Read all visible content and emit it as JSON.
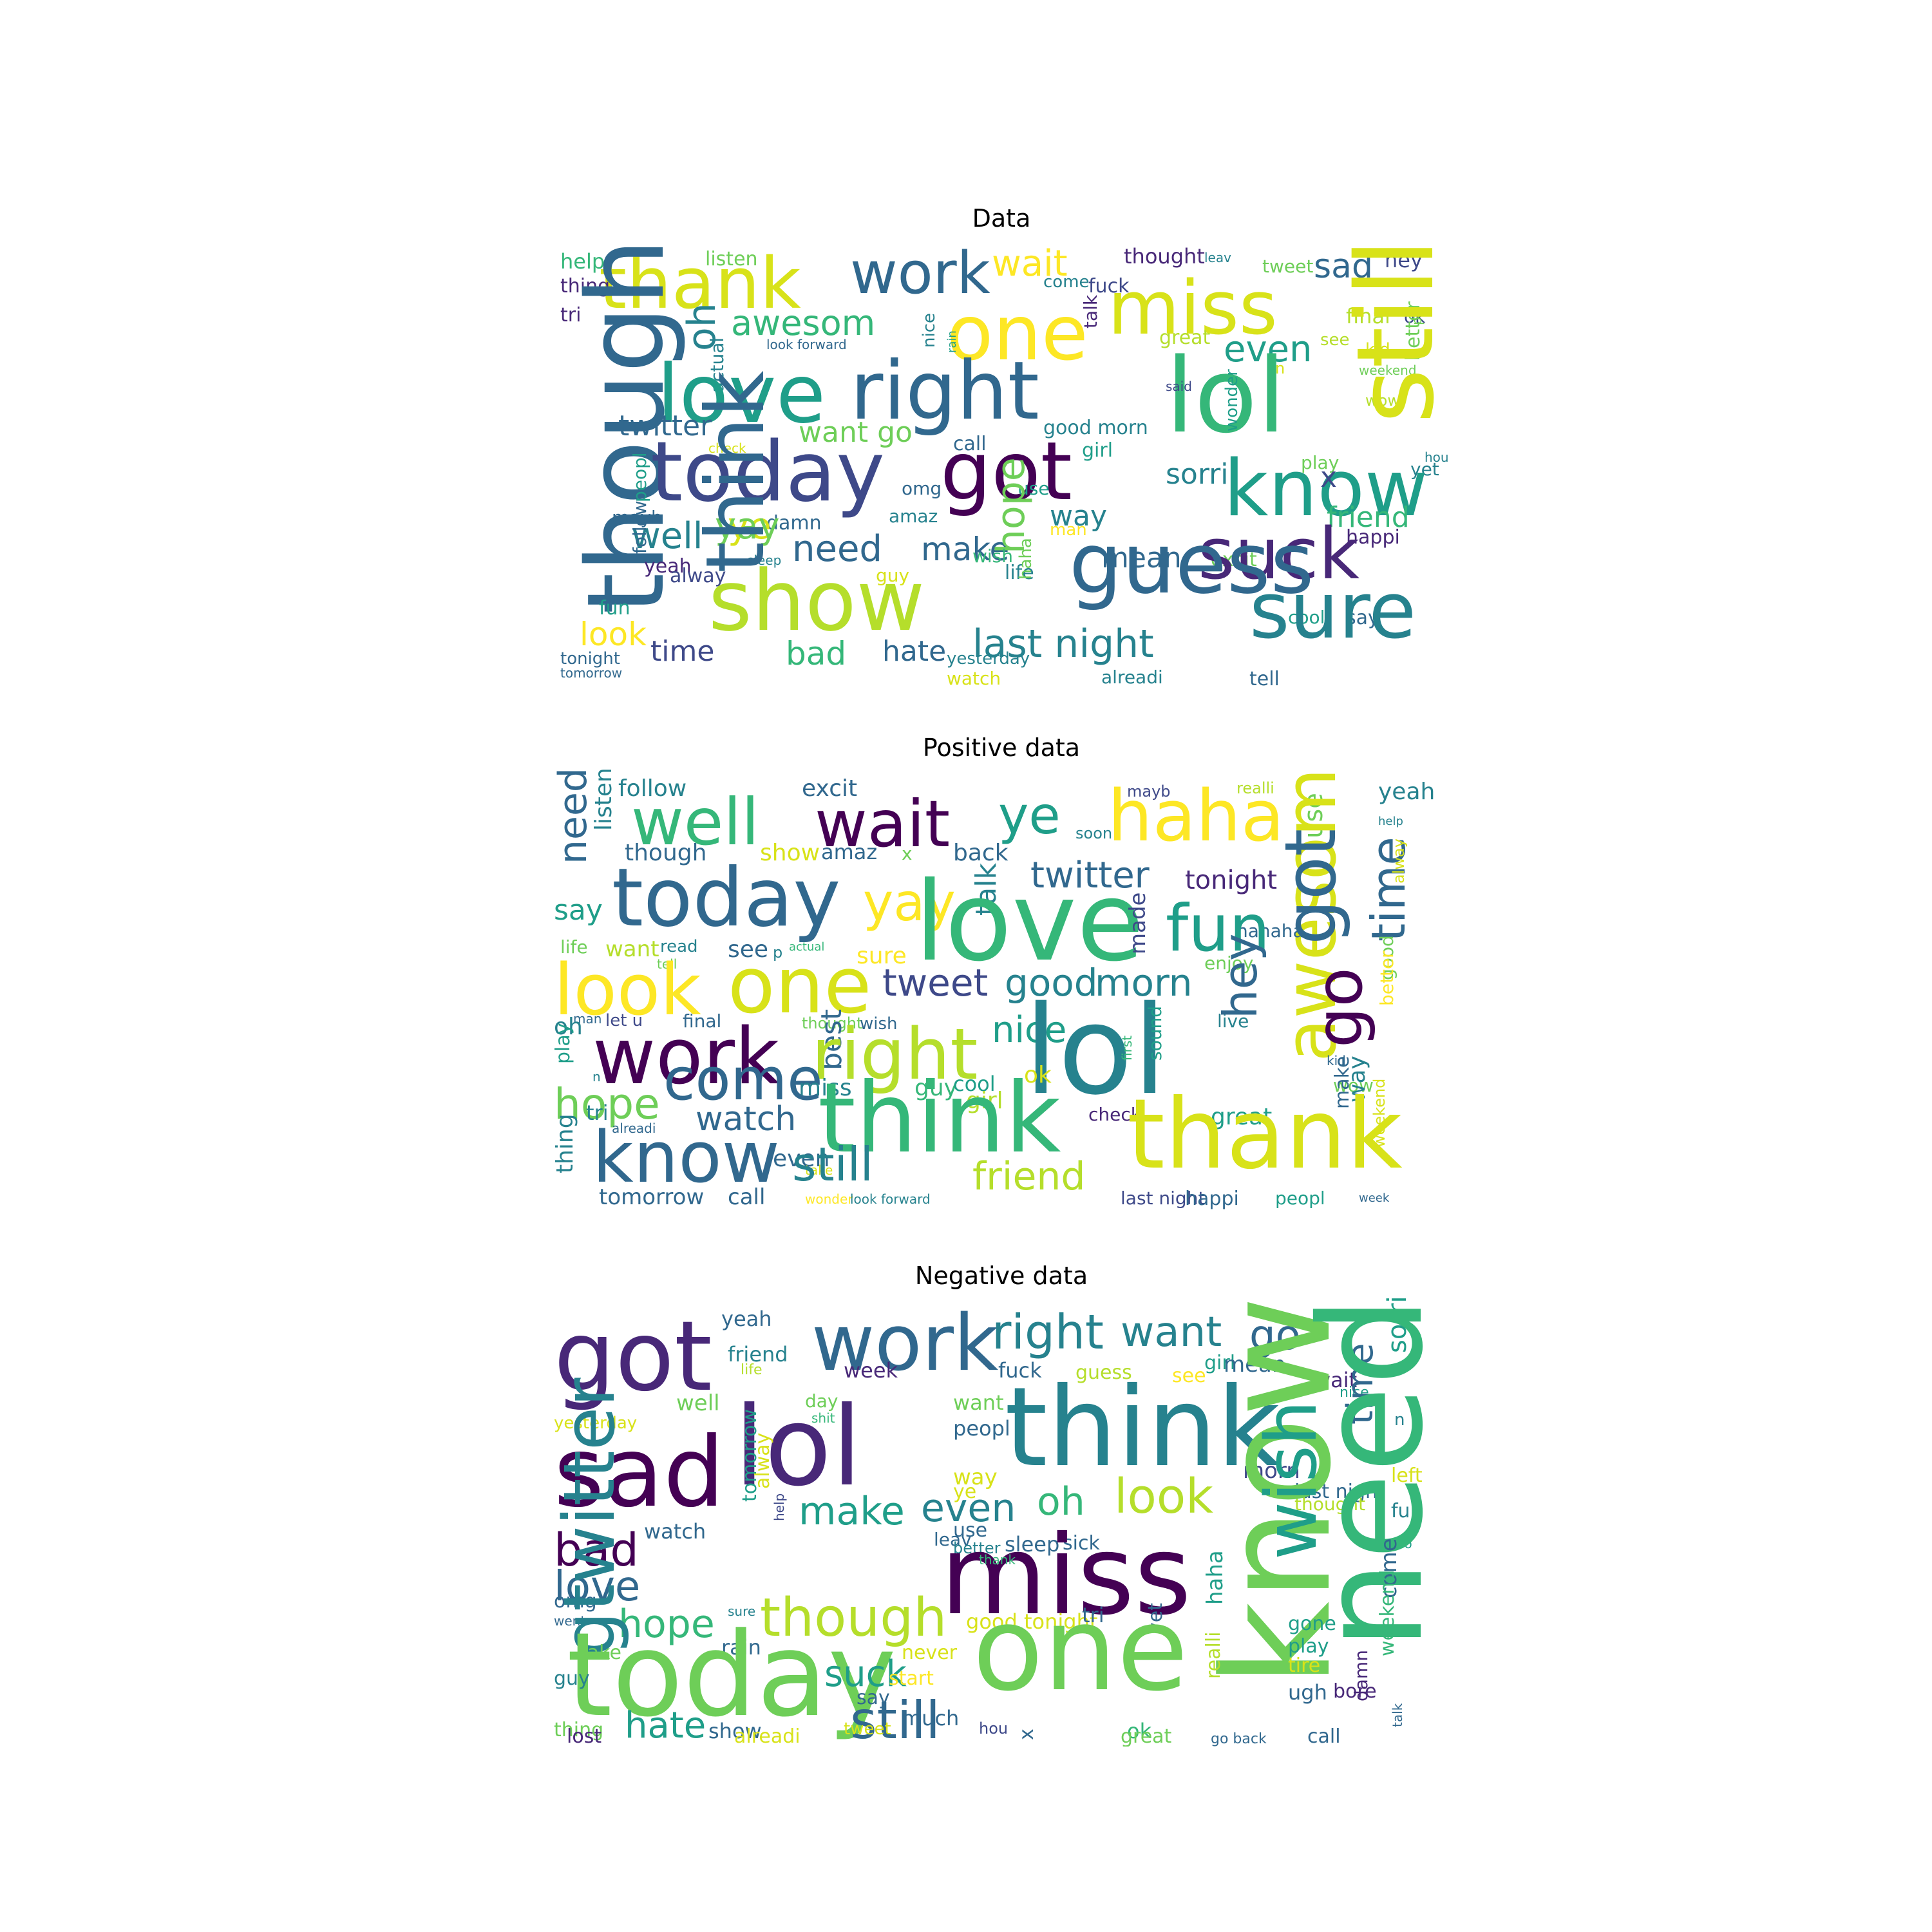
{
  "palette": [
    "#440154",
    "#482878",
    "#3e4989",
    "#31688e",
    "#26828e",
    "#1f9e89",
    "#35b779",
    "#6ece58",
    "#b5de2b",
    "#d8e219",
    "#fde725"
  ],
  "panels": [
    {
      "title": "Data",
      "words": [
        {
          "text": "help",
          "c": 6
        },
        {
          "text": "listen",
          "c": 7
        },
        {
          "text": "thank",
          "c": 9
        },
        {
          "text": "work",
          "c": 3
        },
        {
          "text": "wait",
          "c": 10
        },
        {
          "text": "thought",
          "c": 1
        },
        {
          "text": "leav",
          "c": 4
        },
        {
          "text": "tweet",
          "c": 7
        },
        {
          "text": "sad",
          "c": 3
        },
        {
          "text": "hey",
          "c": 2
        },
        {
          "text": "thing",
          "c": 1
        },
        {
          "text": "fuck",
          "c": 2
        },
        {
          "text": "come",
          "c": 4
        },
        {
          "text": "miss",
          "c": 9
        },
        {
          "text": "one",
          "c": 10
        },
        {
          "text": "tri",
          "c": 1
        },
        {
          "text": "awesom",
          "c": 6
        },
        {
          "text": "nice",
          "c": 4
        },
        {
          "text": "rain",
          "c": 5
        },
        {
          "text": "talk",
          "c": 1
        },
        {
          "text": "great",
          "c": 8
        },
        {
          "text": "final",
          "c": 8
        },
        {
          "text": "ok",
          "c": 2
        },
        {
          "text": "though",
          "c": 3
        },
        {
          "text": "oh",
          "c": 4
        },
        {
          "text": "actual",
          "c": 4
        },
        {
          "text": "look forward",
          "c": 3
        },
        {
          "text": "even",
          "c": 5
        },
        {
          "text": "see",
          "c": 8
        },
        {
          "text": "kid",
          "c": 9
        },
        {
          "text": "p",
          "c": 7
        },
        {
          "text": "love",
          "c": 5
        },
        {
          "text": "right",
          "c": 3
        },
        {
          "text": "lol",
          "c": 6
        },
        {
          "text": "said",
          "c": 2
        },
        {
          "text": "n",
          "c": 9
        },
        {
          "text": "weekend",
          "c": 7
        },
        {
          "text": "better",
          "c": 7
        },
        {
          "text": "twitter",
          "c": 3
        },
        {
          "text": "want go",
          "c": 7
        },
        {
          "text": "good morn",
          "c": 4
        },
        {
          "text": "wonder",
          "c": 5
        },
        {
          "text": "wow",
          "c": 8
        },
        {
          "text": "still",
          "c": 9
        },
        {
          "text": "call",
          "c": 3
        },
        {
          "text": "girl",
          "c": 5
        },
        {
          "text": "check",
          "c": 9
        },
        {
          "text": "hou",
          "c": 4
        },
        {
          "text": "peopl",
          "c": 5
        },
        {
          "text": "today",
          "c": 2
        },
        {
          "text": "got",
          "c": 0
        },
        {
          "text": "sorri",
          "c": 4
        },
        {
          "text": "play",
          "c": 7
        },
        {
          "text": "yet",
          "c": 4
        },
        {
          "text": "omg",
          "c": 3
        },
        {
          "text": "use",
          "c": 5
        },
        {
          "text": "know",
          "c": 5
        },
        {
          "text": "x",
          "c": 2
        },
        {
          "text": "mayb",
          "c": 3
        },
        {
          "text": "damn",
          "c": 3
        },
        {
          "text": "amaz",
          "c": 4
        },
        {
          "text": "way",
          "c": 4
        },
        {
          "text": "ye",
          "c": 9
        },
        {
          "text": "man",
          "c": 10
        },
        {
          "text": "friend",
          "c": 6
        },
        {
          "text": "well",
          "c": 4
        },
        {
          "text": "happi",
          "c": 1
        },
        {
          "text": "need",
          "c": 3
        },
        {
          "text": "make",
          "c": 3
        },
        {
          "text": "hope",
          "c": 7
        },
        {
          "text": "sleep",
          "c": 4
        },
        {
          "text": "yay",
          "c": 7
        },
        {
          "text": "follow",
          "c": 3
        },
        {
          "text": "yeah",
          "c": 1
        },
        {
          "text": "mean",
          "c": 3
        },
        {
          "text": "excit",
          "c": 7
        },
        {
          "text": "alway",
          "c": 2
        },
        {
          "text": "guy",
          "c": 9
        },
        {
          "text": "life",
          "c": 4
        },
        {
          "text": "wish",
          "c": 6
        },
        {
          "text": "suck",
          "c": 1
        },
        {
          "text": "haha",
          "c": 7
        },
        {
          "text": "guess",
          "c": 3
        },
        {
          "text": "fun",
          "c": 5
        },
        {
          "text": "think",
          "c": 3
        },
        {
          "text": "show",
          "c": 8
        },
        {
          "text": "cool",
          "c": 5
        },
        {
          "text": "say",
          "c": 3
        },
        {
          "text": "look",
          "c": 10
        },
        {
          "text": "last night",
          "c": 4
        },
        {
          "text": "sure",
          "c": 4
        },
        {
          "text": "tonight",
          "c": 3
        },
        {
          "text": "time",
          "c": 2
        },
        {
          "text": "bad",
          "c": 6
        },
        {
          "text": "hate",
          "c": 3
        },
        {
          "text": "yesterday",
          "c": 4
        },
        {
          "text": "tomorrow",
          "c": 3
        },
        {
          "text": "watch",
          "c": 9
        },
        {
          "text": "alreadi",
          "c": 4
        },
        {
          "text": "tell",
          "c": 3
        }
      ]
    },
    {
      "title": "Positive data",
      "words": [
        {
          "text": "need",
          "c": 3
        },
        {
          "text": "listen",
          "c": 4
        },
        {
          "text": "follow",
          "c": 4
        },
        {
          "text": "well",
          "c": 6
        },
        {
          "text": "excit",
          "c": 3
        },
        {
          "text": "wait",
          "c": 0
        },
        {
          "text": "ye",
          "c": 5
        },
        {
          "text": "mayb",
          "c": 2
        },
        {
          "text": "haha",
          "c": 10
        },
        {
          "text": "realli",
          "c": 8
        },
        {
          "text": "use",
          "c": 7
        },
        {
          "text": "yeah",
          "c": 4
        },
        {
          "text": "soon",
          "c": 4
        },
        {
          "text": "help",
          "c": 4
        },
        {
          "text": "though",
          "c": 3
        },
        {
          "text": "show",
          "c": 9
        },
        {
          "text": "amaz",
          "c": 3
        },
        {
          "text": "back",
          "c": 3
        },
        {
          "text": "x",
          "c": 7
        },
        {
          "text": "twitter",
          "c": 3
        },
        {
          "text": "tonight",
          "c": 1
        },
        {
          "text": "awesom",
          "c": 9
        },
        {
          "text": "time",
          "c": 3
        },
        {
          "text": "alway",
          "c": 9
        },
        {
          "text": "today",
          "c": 3
        },
        {
          "text": "say",
          "c": 5
        },
        {
          "text": "yay",
          "c": 10
        },
        {
          "text": "talk",
          "c": 4
        },
        {
          "text": "love",
          "c": 6
        },
        {
          "text": "hahaha",
          "c": 3
        },
        {
          "text": "fun",
          "c": 5
        },
        {
          "text": "good",
          "c": 7
        },
        {
          "text": "life",
          "c": 7
        },
        {
          "text": "want",
          "c": 8
        },
        {
          "text": "read",
          "c": 4
        },
        {
          "text": "see",
          "c": 3
        },
        {
          "text": "p",
          "c": 4
        },
        {
          "text": "actual",
          "c": 6
        },
        {
          "text": "sure",
          "c": 10
        },
        {
          "text": "tell",
          "c": 7
        },
        {
          "text": "look",
          "c": 10
        },
        {
          "text": "one",
          "c": 9
        },
        {
          "text": "tweet",
          "c": 2
        },
        {
          "text": "good",
          "c": 4
        },
        {
          "text": "morn",
          "c": 4
        },
        {
          "text": "made",
          "c": 2
        },
        {
          "text": "enjoy",
          "c": 7
        },
        {
          "text": "got",
          "c": 3
        },
        {
          "text": "go",
          "c": 0
        },
        {
          "text": "man",
          "c": 3
        },
        {
          "text": "let u",
          "c": 2
        },
        {
          "text": "final",
          "c": 3
        },
        {
          "text": "thought",
          "c": 7
        },
        {
          "text": "wish",
          "c": 3
        },
        {
          "text": "live",
          "c": 4
        },
        {
          "text": "better",
          "c": 10
        },
        {
          "text": "oh",
          "c": 4
        },
        {
          "text": "best",
          "c": 3
        },
        {
          "text": "nice",
          "c": 5
        },
        {
          "text": "work",
          "c": 0
        },
        {
          "text": "right",
          "c": 8
        },
        {
          "text": "lol",
          "c": 4
        },
        {
          "text": "hey",
          "c": 3
        },
        {
          "text": "play",
          "c": 5
        },
        {
          "text": "ok",
          "c": 9
        },
        {
          "text": "first",
          "c": 6
        },
        {
          "text": "sound",
          "c": 5
        },
        {
          "text": "kid",
          "c": 3
        },
        {
          "text": "n",
          "c": 4
        },
        {
          "text": "come",
          "c": 3
        },
        {
          "text": "miss",
          "c": 4
        },
        {
          "text": "guy",
          "c": 6
        },
        {
          "text": "cool",
          "c": 5
        },
        {
          "text": "wow",
          "c": 7
        },
        {
          "text": "hope",
          "c": 7
        },
        {
          "text": "girl",
          "c": 8
        },
        {
          "text": "make",
          "c": 3
        },
        {
          "text": "way",
          "c": 4
        },
        {
          "text": "tri",
          "c": 4
        },
        {
          "text": "watch",
          "c": 3
        },
        {
          "text": "check",
          "c": 1
        },
        {
          "text": "great",
          "c": 5
        },
        {
          "text": "alreadi",
          "c": 3
        },
        {
          "text": "think",
          "c": 6
        },
        {
          "text": "thank",
          "c": 9
        },
        {
          "text": "thing",
          "c": 4
        },
        {
          "text": "know",
          "c": 3
        },
        {
          "text": "even",
          "c": 3
        },
        {
          "text": "take",
          "c": 9
        },
        {
          "text": "weekend",
          "c": 9
        },
        {
          "text": "still",
          "c": 4
        },
        {
          "text": "friend",
          "c": 8
        },
        {
          "text": "tomorrow",
          "c": 3
        },
        {
          "text": "call",
          "c": 3
        },
        {
          "text": "wonder",
          "c": 10
        },
        {
          "text": "look forward",
          "c": 4
        },
        {
          "text": "last night",
          "c": 2
        },
        {
          "text": "happi",
          "c": 3
        },
        {
          "text": "peopl",
          "c": 5
        },
        {
          "text": "week",
          "c": 3
        }
      ]
    },
    {
      "title": "Negative data",
      "words": [
        {
          "text": "got",
          "c": 1
        },
        {
          "text": "yeah",
          "c": 3
        },
        {
          "text": "work",
          "c": 3
        },
        {
          "text": "right",
          "c": 4
        },
        {
          "text": "want",
          "c": 4
        },
        {
          "text": "go",
          "c": 3
        },
        {
          "text": "sorri",
          "c": 5
        },
        {
          "text": "friend",
          "c": 4
        },
        {
          "text": "life",
          "c": 8
        },
        {
          "text": "week",
          "c": 1
        },
        {
          "text": "fuck",
          "c": 3
        },
        {
          "text": "guess",
          "c": 8
        },
        {
          "text": "see",
          "c": 10
        },
        {
          "text": "girl",
          "c": 5
        },
        {
          "text": "mean",
          "c": 3
        },
        {
          "text": "wait",
          "c": 1
        },
        {
          "text": "nice",
          "c": 5
        },
        {
          "text": "time",
          "c": 3
        },
        {
          "text": "well",
          "c": 7
        },
        {
          "text": "day",
          "c": 7
        },
        {
          "text": "shit",
          "c": 6
        },
        {
          "text": "want",
          "c": 7
        },
        {
          "text": "n",
          "c": 4
        },
        {
          "text": "yesterday",
          "c": 9
        },
        {
          "text": "peopl",
          "c": 3
        },
        {
          "text": "sad",
          "c": 0
        },
        {
          "text": "lol",
          "c": 1
        },
        {
          "text": "think",
          "c": 4
        },
        {
          "text": "tomorrow",
          "c": 5
        },
        {
          "text": "alway",
          "c": 9
        },
        {
          "text": "way",
          "c": 9
        },
        {
          "text": "ye",
          "c": 9
        },
        {
          "text": "left",
          "c": 9
        },
        {
          "text": "oh",
          "c": 6
        },
        {
          "text": "look",
          "c": 8
        },
        {
          "text": "morn",
          "c": 2
        },
        {
          "text": "last night",
          "c": 3
        },
        {
          "text": "make",
          "c": 5
        },
        {
          "text": "even",
          "c": 4
        },
        {
          "text": "thought",
          "c": 8
        },
        {
          "text": "fun",
          "c": 4
        },
        {
          "text": "watch",
          "c": 3
        },
        {
          "text": "help",
          "c": 2
        },
        {
          "text": "use",
          "c": 3
        },
        {
          "text": "leav",
          "c": 3
        },
        {
          "text": "better",
          "c": 4
        },
        {
          "text": "sleep",
          "c": 3
        },
        {
          "text": "seem",
          "c": 6
        },
        {
          "text": "bad",
          "c": 0
        },
        {
          "text": "sick",
          "c": 3
        },
        {
          "text": "tho",
          "c": 5
        },
        {
          "text": "know",
          "c": 7
        },
        {
          "text": "miss",
          "c": 0
        },
        {
          "text": "wish",
          "c": 5
        },
        {
          "text": "need",
          "c": 6
        },
        {
          "text": "love",
          "c": 3
        },
        {
          "text": "haha",
          "c": 5
        },
        {
          "text": "thank",
          "c": 6
        },
        {
          "text": "come",
          "c": 3
        },
        {
          "text": "omg",
          "c": 3
        },
        {
          "text": "sure",
          "c": 4
        },
        {
          "text": "good tonight",
          "c": 9
        },
        {
          "text": "tri",
          "c": 3
        },
        {
          "text": "went",
          "c": 3
        },
        {
          "text": "hope",
          "c": 6
        },
        {
          "text": "though",
          "c": 8
        },
        {
          "text": "yet",
          "c": 3
        },
        {
          "text": "gone",
          "c": 5
        },
        {
          "text": "weekend",
          "c": 6
        },
        {
          "text": "gtwitter",
          "c": 4
        },
        {
          "text": "take",
          "c": 7
        },
        {
          "text": "rain",
          "c": 3
        },
        {
          "text": "never",
          "c": 9
        },
        {
          "text": "play",
          "c": 5
        },
        {
          "text": "damn",
          "c": 1
        },
        {
          "text": "today",
          "c": 7
        },
        {
          "text": "one",
          "c": 7
        },
        {
          "text": "suck",
          "c": 5
        },
        {
          "text": "realli",
          "c": 8
        },
        {
          "text": "tire",
          "c": 9
        },
        {
          "text": "guy",
          "c": 4
        },
        {
          "text": "start",
          "c": 10
        },
        {
          "text": "ugh",
          "c": 3
        },
        {
          "text": "bore",
          "c": 1
        },
        {
          "text": "say",
          "c": 3
        },
        {
          "text": "still",
          "c": 3
        },
        {
          "text": "much",
          "c": 3
        },
        {
          "text": "thing",
          "c": 7
        },
        {
          "text": "hate",
          "c": 5
        },
        {
          "text": "tweet",
          "c": 9
        },
        {
          "text": "hou",
          "c": 2
        },
        {
          "text": "ok",
          "c": 6
        },
        {
          "text": "talk",
          "c": 3
        },
        {
          "text": "show",
          "c": 3
        },
        {
          "text": "lost",
          "c": 1
        },
        {
          "text": "alreadi",
          "c": 9
        },
        {
          "text": "x",
          "c": 3
        },
        {
          "text": "great",
          "c": 7
        },
        {
          "text": "go back",
          "c": 3
        },
        {
          "text": "call",
          "c": 3
        }
      ]
    }
  ]
}
